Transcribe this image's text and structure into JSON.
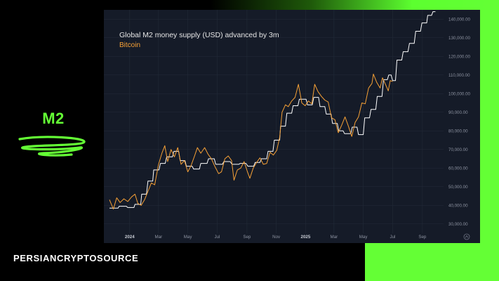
{
  "brand": {
    "logo_text": "M2",
    "footer": "PERSIANCRYPTOSOURCE",
    "accent_color": "#64ff35"
  },
  "chart_data": {
    "type": "line",
    "title": "Global M2 money supply (USD) advanced by 3m",
    "ylim": [
      25000,
      145000
    ],
    "y_ticks": [
      30000,
      40000,
      50000,
      60000,
      70000,
      80000,
      90000,
      100000,
      110000,
      120000,
      130000,
      140000
    ],
    "y_tick_labels": [
      "30,000.00",
      "40,000.00",
      "50,000.00",
      "60,000.00",
      "70,000.00",
      "80,000.00",
      "90,000.00",
      "100,000.00",
      "110,000.00",
      "120,000.00",
      "130,000.00",
      "140,000.00"
    ],
    "x_range": [
      "2023-11-20",
      "2025-10-15"
    ],
    "x_ticks": [
      {
        "date": "2024-01-01",
        "label": "2024",
        "year": true
      },
      {
        "date": "2024-03-01",
        "label": "Mar",
        "year": false
      },
      {
        "date": "2024-05-01",
        "label": "May",
        "year": false
      },
      {
        "date": "2024-07-01",
        "label": "Jul",
        "year": false
      },
      {
        "date": "2024-09-01",
        "label": "Sep",
        "year": false
      },
      {
        "date": "2024-11-01",
        "label": "Nov",
        "year": false
      },
      {
        "date": "2025-01-01",
        "label": "2025",
        "year": true
      },
      {
        "date": "2025-03-01",
        "label": "Mar",
        "year": false
      },
      {
        "date": "2025-05-01",
        "label": "May",
        "year": false
      },
      {
        "date": "2025-07-01",
        "label": "Jul",
        "year": false
      },
      {
        "date": "2025-09-01",
        "label": "Sep",
        "year": false
      }
    ],
    "grid": true,
    "series": [
      {
        "name": "",
        "color": "#ffffff",
        "points": [
          [
            "2023-11-20",
            38500
          ],
          [
            "2023-12-08",
            38500
          ],
          [
            "2023-12-10",
            39500
          ],
          [
            "2023-12-25",
            39500
          ],
          [
            "2023-12-28",
            38800
          ],
          [
            "2024-01-10",
            38800
          ],
          [
            "2024-01-12",
            40500
          ],
          [
            "2024-01-24",
            40500
          ],
          [
            "2024-01-26",
            46000
          ],
          [
            "2024-02-05",
            46000
          ],
          [
            "2024-02-08",
            53000
          ],
          [
            "2024-02-18",
            53000
          ],
          [
            "2024-02-20",
            59000
          ],
          [
            "2024-03-02",
            59000
          ],
          [
            "2024-03-05",
            62500
          ],
          [
            "2024-03-15",
            62500
          ],
          [
            "2024-03-18",
            66000
          ],
          [
            "2024-03-30",
            66000
          ],
          [
            "2024-04-02",
            69000
          ],
          [
            "2024-04-12",
            69000
          ],
          [
            "2024-04-15",
            64000
          ],
          [
            "2024-04-25",
            64000
          ],
          [
            "2024-04-28",
            61000
          ],
          [
            "2024-05-10",
            61000
          ],
          [
            "2024-05-13",
            59500
          ],
          [
            "2024-05-25",
            59500
          ],
          [
            "2024-05-28",
            62500
          ],
          [
            "2024-06-10",
            62500
          ],
          [
            "2024-06-13",
            65000
          ],
          [
            "2024-06-25",
            65000
          ],
          [
            "2024-06-28",
            62000
          ],
          [
            "2024-07-12",
            62000
          ],
          [
            "2024-07-15",
            63500
          ],
          [
            "2024-07-28",
            63500
          ],
          [
            "2024-08-01",
            62000
          ],
          [
            "2024-08-15",
            62000
          ],
          [
            "2024-08-18",
            62500
          ],
          [
            "2024-08-30",
            62500
          ],
          [
            "2024-09-03",
            61000
          ],
          [
            "2024-09-15",
            61000
          ],
          [
            "2024-09-18",
            63000
          ],
          [
            "2024-09-28",
            63000
          ],
          [
            "2024-10-01",
            65000
          ],
          [
            "2024-10-12",
            65000
          ],
          [
            "2024-10-15",
            69000
          ],
          [
            "2024-10-25",
            69000
          ],
          [
            "2024-10-28",
            75000
          ],
          [
            "2024-11-08",
            75000
          ],
          [
            "2024-11-10",
            82500
          ],
          [
            "2024-11-20",
            82500
          ],
          [
            "2024-11-23",
            89500
          ],
          [
            "2024-12-03",
            89500
          ],
          [
            "2024-12-06",
            93500
          ],
          [
            "2024-12-16",
            93500
          ],
          [
            "2024-12-19",
            97000
          ],
          [
            "2025-01-02",
            97000
          ],
          [
            "2025-01-05",
            94000
          ],
          [
            "2025-01-15",
            94000
          ],
          [
            "2025-01-18",
            98000
          ],
          [
            "2025-01-28",
            98000
          ],
          [
            "2025-01-31",
            93000
          ],
          [
            "2025-02-10",
            93000
          ],
          [
            "2025-02-13",
            89000
          ],
          [
            "2025-02-23",
            89000
          ],
          [
            "2025-02-26",
            84000
          ],
          [
            "2025-03-08",
            84000
          ],
          [
            "2025-03-11",
            80000
          ],
          [
            "2025-03-20",
            80000
          ],
          [
            "2025-03-23",
            78500
          ],
          [
            "2025-04-05",
            78500
          ],
          [
            "2025-04-08",
            82000
          ],
          [
            "2025-04-18",
            82000
          ],
          [
            "2025-04-21",
            78000
          ],
          [
            "2025-05-01",
            78000
          ],
          [
            "2025-05-04",
            87000
          ],
          [
            "2025-05-14",
            87000
          ],
          [
            "2025-05-17",
            91500
          ],
          [
            "2025-05-27",
            91500
          ],
          [
            "2025-05-30",
            98500
          ],
          [
            "2025-06-09",
            98500
          ],
          [
            "2025-06-12",
            107500
          ],
          [
            "2025-06-20",
            107500
          ],
          [
            "2025-06-23",
            110000
          ],
          [
            "2025-06-28",
            110000
          ],
          [
            "2025-07-01",
            107000
          ],
          [
            "2025-07-07",
            107000
          ],
          [
            "2025-07-10",
            118000
          ],
          [
            "2025-07-20",
            118000
          ],
          [
            "2025-07-23",
            122500
          ],
          [
            "2025-08-02",
            122500
          ],
          [
            "2025-08-05",
            127000
          ],
          [
            "2025-08-15",
            127000
          ],
          [
            "2025-08-18",
            133500
          ],
          [
            "2025-08-28",
            133500
          ],
          [
            "2025-08-31",
            138000
          ],
          [
            "2025-09-10",
            138000
          ],
          [
            "2025-09-12",
            142000
          ],
          [
            "2025-09-20",
            142000
          ],
          [
            "2025-09-23",
            144000
          ],
          [
            "2025-09-28",
            144000
          ]
        ]
      },
      {
        "name": "Bitcoin",
        "color": "#f7a136",
        "points": [
          [
            "2023-11-20",
            43000
          ],
          [
            "2023-11-28",
            38000
          ],
          [
            "2023-12-05",
            44000
          ],
          [
            "2023-12-12",
            41500
          ],
          [
            "2023-12-20",
            43500
          ],
          [
            "2023-12-28",
            42000
          ],
          [
            "2024-01-05",
            44500
          ],
          [
            "2024-01-12",
            46000
          ],
          [
            "2024-01-18",
            41000
          ],
          [
            "2024-01-25",
            40000
          ],
          [
            "2024-02-01",
            43000
          ],
          [
            "2024-02-08",
            47500
          ],
          [
            "2024-02-15",
            52000
          ],
          [
            "2024-02-22",
            51000
          ],
          [
            "2024-03-01",
            62000
          ],
          [
            "2024-03-08",
            68000
          ],
          [
            "2024-03-14",
            72000
          ],
          [
            "2024-03-20",
            63500
          ],
          [
            "2024-03-27",
            70000
          ],
          [
            "2024-04-03",
            66000
          ],
          [
            "2024-04-10",
            71000
          ],
          [
            "2024-04-17",
            62000
          ],
          [
            "2024-04-24",
            64000
          ],
          [
            "2024-05-01",
            58000
          ],
          [
            "2024-05-08",
            61500
          ],
          [
            "2024-05-15",
            66500
          ],
          [
            "2024-05-21",
            71000
          ],
          [
            "2024-05-28",
            68000
          ],
          [
            "2024-06-05",
            71000
          ],
          [
            "2024-06-12",
            67500
          ],
          [
            "2024-06-19",
            65000
          ],
          [
            "2024-06-26",
            61000
          ],
          [
            "2024-07-04",
            57000
          ],
          [
            "2024-07-10",
            58000
          ],
          [
            "2024-07-17",
            65000
          ],
          [
            "2024-07-24",
            66500
          ],
          [
            "2024-07-31",
            64000
          ],
          [
            "2024-08-05",
            53500
          ],
          [
            "2024-08-12",
            59000
          ],
          [
            "2024-08-19",
            60000
          ],
          [
            "2024-08-26",
            63500
          ],
          [
            "2024-09-02",
            58000
          ],
          [
            "2024-09-07",
            54500
          ],
          [
            "2024-09-14",
            60000
          ],
          [
            "2024-09-21",
            63000
          ],
          [
            "2024-09-28",
            65500
          ],
          [
            "2024-10-05",
            62000
          ],
          [
            "2024-10-12",
            62500
          ],
          [
            "2024-10-19",
            68500
          ],
          [
            "2024-10-26",
            67000
          ],
          [
            "2024-11-02",
            69500
          ],
          [
            "2024-11-08",
            76500
          ],
          [
            "2024-11-13",
            90000
          ],
          [
            "2024-11-20",
            94000
          ],
          [
            "2024-11-26",
            93000
          ],
          [
            "2024-12-03",
            96000
          ],
          [
            "2024-12-10",
            98000
          ],
          [
            "2024-12-17",
            105000
          ],
          [
            "2024-12-24",
            95000
          ],
          [
            "2024-12-31",
            93500
          ],
          [
            "2025-01-07",
            96000
          ],
          [
            "2025-01-14",
            94500
          ],
          [
            "2025-01-20",
            105000
          ],
          [
            "2025-01-27",
            101000
          ],
          [
            "2025-02-03",
            98500
          ],
          [
            "2025-02-10",
            96500
          ],
          [
            "2025-02-17",
            95500
          ],
          [
            "2025-02-24",
            87000
          ],
          [
            "2025-03-03",
            86000
          ],
          [
            "2025-03-10",
            79000
          ],
          [
            "2025-03-17",
            83000
          ],
          [
            "2025-03-24",
            87500
          ],
          [
            "2025-03-31",
            82500
          ],
          [
            "2025-04-07",
            77000
          ],
          [
            "2025-04-14",
            84500
          ],
          [
            "2025-04-21",
            87500
          ],
          [
            "2025-04-28",
            95000
          ],
          [
            "2025-05-05",
            94500
          ],
          [
            "2025-05-12",
            103000
          ],
          [
            "2025-05-19",
            105500
          ],
          [
            "2025-05-22",
            110500
          ],
          [
            "2025-05-29",
            106000
          ],
          [
            "2025-06-05",
            103000
          ],
          [
            "2025-06-10",
            108500
          ],
          [
            "2025-06-17",
            104500
          ],
          [
            "2025-06-22",
            101500
          ],
          [
            "2025-06-26",
            107000
          ],
          [
            "2025-07-01",
            106500
          ]
        ]
      }
    ]
  }
}
